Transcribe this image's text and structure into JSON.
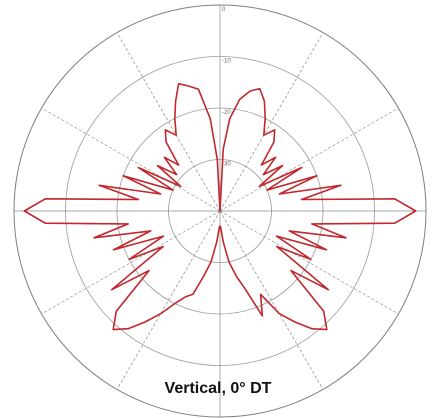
{
  "chart_data": {
    "type": "polar-line",
    "title": "Vertical, 0° DT",
    "r_unit": "dB",
    "r_range": [
      -40,
      0
    ],
    "ring_values": [
      0,
      -10,
      -20,
      -30
    ],
    "ring_labels": [
      "0",
      "-10",
      "-20",
      "-30"
    ],
    "angle_grid_deg": [
      0,
      30,
      60,
      90,
      120,
      150,
      180,
      210,
      240,
      270,
      300,
      330
    ],
    "series": [
      {
        "color": "#c0282d",
        "points_deg_db": [
          [
            0,
            -40
          ],
          [
            3,
            -28
          ],
          [
            6,
            -22
          ],
          [
            10,
            -18
          ],
          [
            14,
            -16
          ],
          [
            18,
            -15
          ],
          [
            22,
            -17
          ],
          [
            26,
            -20
          ],
          [
            30,
            -23
          ],
          [
            34,
            -21
          ],
          [
            38,
            -23
          ],
          [
            42,
            -28
          ],
          [
            46,
            -25
          ],
          [
            50,
            -29
          ],
          [
            54,
            -25
          ],
          [
            58,
            -31
          ],
          [
            62,
            -22
          ],
          [
            66,
            -30
          ],
          [
            70,
            -20
          ],
          [
            74,
            -28
          ],
          [
            78,
            -16
          ],
          [
            82,
            -24
          ],
          [
            86,
            -6
          ],
          [
            90,
            -2
          ],
          [
            94,
            -6
          ],
          [
            98,
            -22
          ],
          [
            102,
            -15
          ],
          [
            106,
            -26
          ],
          [
            110,
            -18
          ],
          [
            114,
            -28
          ],
          [
            118,
            -20
          ],
          [
            122,
            -27
          ],
          [
            126,
            -14
          ],
          [
            130,
            -22
          ],
          [
            134,
            -12
          ],
          [
            138,
            -9
          ],
          [
            142,
            -11
          ],
          [
            146,
            -14
          ],
          [
            150,
            -17
          ],
          [
            154,
            -22
          ],
          [
            158,
            -18
          ],
          [
            162,
            -24
          ],
          [
            166,
            -27
          ],
          [
            170,
            -30
          ],
          [
            174,
            -34
          ],
          [
            178,
            -37
          ],
          [
            182,
            -37
          ],
          [
            186,
            -34
          ],
          [
            190,
            -30
          ],
          [
            194,
            -27
          ],
          [
            198,
            -23
          ],
          [
            202,
            -22
          ],
          [
            206,
            -20
          ],
          [
            210,
            -17
          ],
          [
            214,
            -14
          ],
          [
            218,
            -11
          ],
          [
            222,
            -9
          ],
          [
            226,
            -12
          ],
          [
            230,
            -22
          ],
          [
            234,
            -14
          ],
          [
            238,
            -27
          ],
          [
            242,
            -20
          ],
          [
            246,
            -28
          ],
          [
            250,
            -18
          ],
          [
            254,
            -26
          ],
          [
            258,
            -15
          ],
          [
            262,
            -22
          ],
          [
            266,
            -6
          ],
          [
            270,
            -2
          ],
          [
            274,
            -6
          ],
          [
            278,
            -24
          ],
          [
            282,
            -16
          ],
          [
            286,
            -28
          ],
          [
            290,
            -20
          ],
          [
            294,
            -30
          ],
          [
            298,
            -22
          ],
          [
            302,
            -31
          ],
          [
            306,
            -25
          ],
          [
            310,
            -29
          ],
          [
            314,
            -25
          ],
          [
            318,
            -28
          ],
          [
            322,
            -23
          ],
          [
            326,
            -21
          ],
          [
            330,
            -23
          ],
          [
            334,
            -20
          ],
          [
            338,
            -17
          ],
          [
            342,
            -14
          ],
          [
            346,
            -15
          ],
          [
            350,
            -16
          ],
          [
            354,
            -22
          ],
          [
            357,
            -30
          ],
          [
            360,
            -40
          ]
        ]
      }
    ]
  }
}
